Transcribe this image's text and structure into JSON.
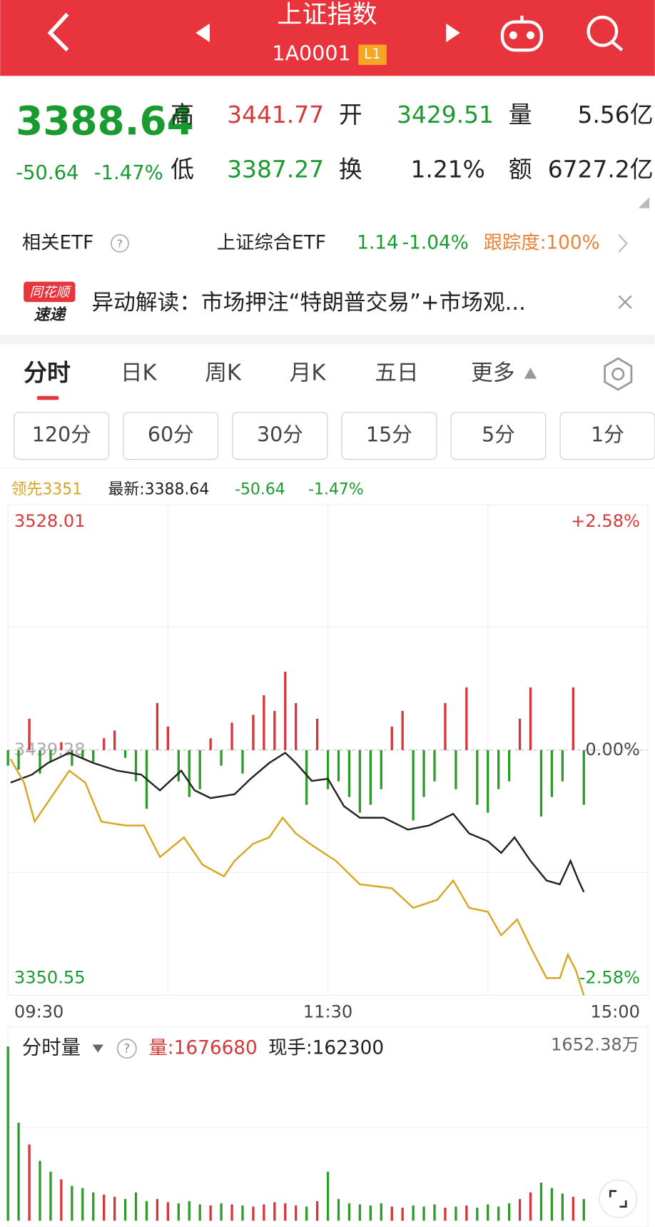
{
  "header": {
    "title": "上证指数",
    "code": "1A0001",
    "level": "L1"
  },
  "quote": {
    "price": "3388.64",
    "change": "-50.64",
    "change_pct": "-1.47%",
    "fields": [
      {
        "label": "高",
        "value": "3441.77"
      },
      {
        "label": "开",
        "value": "3429.51"
      },
      {
        "label": "量",
        "value": "5.56亿"
      },
      {
        "label": "低",
        "value": "3387.27"
      },
      {
        "label": "换",
        "value": "1.21%"
      },
      {
        "label": "额",
        "value": "6727.2亿"
      }
    ]
  },
  "etf": {
    "label": "相关ETF",
    "name": "上证综合ETF",
    "price": "1.14",
    "change": "-1.04%",
    "tracking": "跟踪度:100%"
  },
  "news": {
    "badge_top": "同花顺",
    "badge_bottom": "速递",
    "text": "异动解读：市场押注“特朗普交易”+市场观..."
  },
  "tabs": [
    "分时",
    "日K",
    "周K",
    "月K",
    "五日",
    "更多"
  ],
  "periods": [
    "120分",
    "60分",
    "30分",
    "15分",
    "5分",
    "1分"
  ],
  "intraday": {
    "legend": {
      "lead": "领先3351",
      "latest": "最新:3388.64",
      "change": "-50.64",
      "change_pct": "-1.47%"
    },
    "xlim": [
      0,
      240
    ],
    "xticks": [
      {
        "value": 0,
        "label": "09:30"
      },
      {
        "value": 120,
        "label": "11:30"
      },
      {
        "value": 240,
        "label": "15:00"
      }
    ],
    "ylim": [
      3350.55,
      3528.01
    ],
    "yticks": [
      3350.55,
      3439.28,
      3528.01
    ],
    "y2lim": [
      -2.58,
      2.58
    ],
    "y2ticks": [
      {
        "value": 2.58,
        "label": "+2.58%"
      },
      {
        "value": 0,
        "label": "0.00%"
      },
      {
        "value": -2.58,
        "label": "-2.58%"
      }
    ],
    "series": [
      {
        "name": "最新",
        "color": "#222222",
        "x": [
          1,
          9,
          15,
          23,
          32,
          41,
          50,
          57,
          65,
          70,
          76,
          85,
          91,
          98,
          104,
          108,
          114,
          120,
          126,
          132,
          141,
          150,
          158,
          167,
          173,
          180,
          185,
          190,
          196,
          202,
          207,
          211,
          214,
          216
        ],
        "values": [
          3427.5,
          3430.4,
          3434.6,
          3438.3,
          3434.6,
          3431.8,
          3430.4,
          3424.7,
          3431.8,
          3424.7,
          3421.9,
          3423.3,
          3428.9,
          3434.6,
          3438.3,
          3434.6,
          3428.1,
          3428.9,
          3419.0,
          3414.8,
          3414.8,
          3410.5,
          3412.0,
          3416.2,
          3409.1,
          3406.3,
          3402.1,
          3407.7,
          3399.2,
          3392.1,
          3390.7,
          3399.2,
          3392.1,
          3387.9
        ]
      },
      {
        "name": "领先",
        "color": "#d9a520",
        "x": [
          1,
          6,
          10,
          18,
          23,
          29,
          35,
          44,
          51,
          57,
          66,
          73,
          81,
          85,
          92,
          98,
          103,
          108,
          114,
          123,
          132,
          144,
          152,
          161,
          167,
          173,
          180,
          185,
          191,
          196,
          202,
          207,
          210,
          213,
          216
        ],
        "values": [
          3436.0,
          3427.5,
          3413.4,
          3424.7,
          3431.8,
          3427.5,
          3413.4,
          3412.0,
          3412.0,
          3400.6,
          3407.7,
          3397.8,
          3393.6,
          3399.2,
          3405.4,
          3407.7,
          3414.8,
          3409.1,
          3404.9,
          3399.2,
          3390.7,
          3389.3,
          3382.2,
          3385.1,
          3392.1,
          3382.2,
          3380.8,
          3372.3,
          3378.0,
          3368.1,
          3356.8,
          3356.8,
          3365.3,
          3359.6,
          3350.55
        ]
      }
    ],
    "strength": {
      "up_color": "#d8333a",
      "down_color": "#2e9a2a",
      "ylim": [
        -100,
        100
      ],
      "x": [
        0,
        4,
        8,
        12,
        16,
        20,
        24,
        28,
        32,
        36,
        40,
        44,
        48,
        52,
        56,
        60,
        64,
        68,
        72,
        76,
        80,
        84,
        88,
        92,
        96,
        100,
        104,
        108,
        112,
        116,
        120,
        124,
        128,
        132,
        136,
        140,
        144,
        148,
        152,
        156,
        160,
        164,
        168,
        172,
        176,
        180,
        184,
        188,
        192,
        196,
        200,
        204,
        208,
        212,
        216
      ],
      "values": [
        -20,
        -25,
        40,
        -30,
        -15,
        10,
        -20,
        -10,
        -15,
        15,
        25,
        -10,
        -40,
        -75,
        60,
        30,
        -40,
        -60,
        -50,
        15,
        -20,
        35,
        -30,
        45,
        70,
        50,
        100,
        60,
        -70,
        40,
        -50,
        -40,
        -60,
        -80,
        -70,
        -50,
        30,
        50,
        -90,
        -60,
        -40,
        60,
        -50,
        80,
        -70,
        -80,
        -50,
        -40,
        40,
        80,
        -85,
        -60,
        -40,
        80,
        -70
      ]
    }
  },
  "volume": {
    "label": "分时量",
    "total": "量:1676680",
    "current": "现手:162300",
    "max_label": "1652.38万",
    "ylim": [
      0,
      1652.38
    ],
    "x": [
      0,
      4,
      8,
      12,
      16,
      20,
      24,
      28,
      32,
      36,
      40,
      44,
      48,
      52,
      56,
      60,
      64,
      68,
      72,
      76,
      80,
      84,
      88,
      92,
      96,
      100,
      104,
      108,
      112,
      116,
      120,
      124,
      128,
      132,
      136,
      140,
      144,
      148,
      152,
      156,
      160,
      164,
      168,
      172,
      176,
      180,
      184,
      188,
      192,
      196,
      200,
      204,
      208,
      212,
      216
    ],
    "values": [
      1600,
      900,
      700,
      550,
      450,
      380,
      320,
      300,
      260,
      240,
      220,
      200,
      260,
      180,
      200,
      170,
      160,
      180,
      150,
      140,
      160,
      150,
      140,
      130,
      150,
      170,
      160,
      140,
      130,
      180,
      450,
      200,
      160,
      150,
      140,
      160,
      130,
      120,
      140,
      130,
      150,
      120,
      130,
      140,
      120,
      150,
      130,
      160,
      200,
      260,
      350,
      300,
      250,
      220,
      200
    ]
  }
}
